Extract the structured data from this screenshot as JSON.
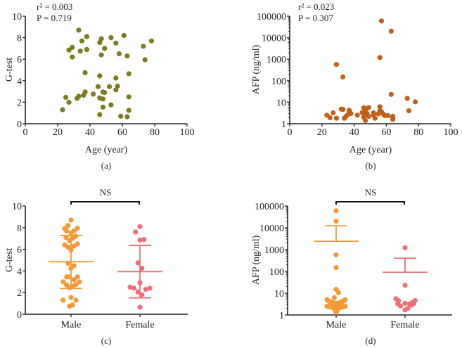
{
  "chart_data": [
    {
      "id": "a",
      "type": "scatter",
      "panel_label": "(a)",
      "xlabel": "Age (year)",
      "ylabel": "G-test",
      "xlim": [
        0,
        100
      ],
      "ylim": [
        0,
        10
      ],
      "yscale": "linear",
      "xticks": [
        "0",
        "20",
        "40",
        "60",
        "80",
        "100"
      ],
      "yticks": [
        "0",
        "2",
        "4",
        "6",
        "8",
        "10"
      ],
      "annotations": [
        "r² = 0.003",
        "P = 0.719"
      ],
      "color": "#7d7a22",
      "points": [
        [
          33,
          8.7
        ],
        [
          38,
          8.1
        ],
        [
          35,
          7.7
        ],
        [
          29,
          7.1
        ],
        [
          27,
          6.85
        ],
        [
          29,
          6.2
        ],
        [
          34,
          6.75
        ],
        [
          38,
          6.9
        ],
        [
          47,
          7.9
        ],
        [
          46,
          7.55
        ],
        [
          53,
          8.0
        ],
        [
          56,
          7.5
        ],
        [
          61,
          8.2
        ],
        [
          49,
          7.0
        ],
        [
          47,
          6.4
        ],
        [
          58,
          6.5
        ],
        [
          63,
          6.3
        ],
        [
          73,
          7.2
        ],
        [
          78,
          7.7
        ],
        [
          74,
          5.95
        ],
        [
          37,
          4.75
        ],
        [
          46,
          4.45
        ],
        [
          64,
          4.65
        ],
        [
          56,
          4.25
        ],
        [
          45,
          3.45
        ],
        [
          52,
          3.45
        ],
        [
          57,
          3.5
        ],
        [
          56,
          3.15
        ],
        [
          25,
          2.45
        ],
        [
          27,
          2.0
        ],
        [
          23,
          1.3
        ],
        [
          32,
          2.35
        ],
        [
          33,
          2.55
        ],
        [
          36,
          2.65
        ],
        [
          37,
          2.95
        ],
        [
          42,
          2.75
        ],
        [
          48,
          2.95
        ],
        [
          49,
          2.9
        ],
        [
          46,
          2.4
        ],
        [
          48,
          2.3
        ],
        [
          53,
          1.75
        ],
        [
          48,
          1.55
        ],
        [
          46,
          0.85
        ],
        [
          64,
          2.5
        ],
        [
          64,
          1.25
        ],
        [
          59,
          0.7
        ],
        [
          63,
          0.65
        ]
      ]
    },
    {
      "id": "b",
      "type": "scatter",
      "panel_label": "(b)",
      "xlabel": "Age (year)",
      "ylabel": "AFP (ng/ml)",
      "xlim": [
        0,
        100
      ],
      "ylim": [
        1,
        100000
      ],
      "yscale": "log",
      "xticks": [
        "0",
        "20",
        "40",
        "60",
        "80",
        "100"
      ],
      "yticks": [
        "1",
        "10",
        "100",
        "1000",
        "10000",
        "100000"
      ],
      "annotations": [
        "r² = 0.023",
        "P = 0.307"
      ],
      "color": "#c0611b",
      "points": [
        [
          57,
          60000
        ],
        [
          63,
          20000
        ],
        [
          56,
          1200
        ],
        [
          29,
          570
        ],
        [
          33,
          150
        ],
        [
          63,
          23
        ],
        [
          73,
          15
        ],
        [
          78,
          10.5
        ],
        [
          74,
          4
        ],
        [
          23,
          2.5
        ],
        [
          25,
          1.9
        ],
        [
          27,
          3.2
        ],
        [
          29,
          1.8
        ],
        [
          32,
          4.8
        ],
        [
          33,
          4.6
        ],
        [
          34,
          1.8
        ],
        [
          35,
          2.2
        ],
        [
          36,
          2.6
        ],
        [
          37,
          3.5
        ],
        [
          37,
          4.2
        ],
        [
          38,
          3.0
        ],
        [
          42,
          2.5
        ],
        [
          45,
          3.3
        ],
        [
          46,
          5.5
        ],
        [
          46,
          2.9
        ],
        [
          46,
          2.0
        ],
        [
          47,
          1.4
        ],
        [
          47,
          4.5
        ],
        [
          47,
          3.6
        ],
        [
          48,
          2.6
        ],
        [
          48,
          3.0
        ],
        [
          49,
          5.6
        ],
        [
          49,
          2.2
        ],
        [
          52,
          3.2
        ],
        [
          52,
          2.5
        ],
        [
          53,
          1.8
        ],
        [
          55,
          2.9
        ],
        [
          56,
          6.2
        ],
        [
          56,
          4.2
        ],
        [
          57,
          3.6
        ],
        [
          58,
          2.9
        ],
        [
          59,
          2.4
        ],
        [
          61,
          2.4
        ],
        [
          64,
          2.2
        ],
        [
          64,
          1.8
        ],
        [
          64,
          1.6
        ]
      ]
    },
    {
      "id": "c",
      "type": "scatter",
      "subtype": "dot-plot",
      "panel_label": "(c)",
      "xlabel": "",
      "ylabel": "G-test",
      "ylim": [
        0,
        10
      ],
      "yscale": "linear",
      "yticks": [
        "0",
        "2",
        "4",
        "6",
        "8",
        "10"
      ],
      "categories": [
        "Male",
        "Female"
      ],
      "significance": "NS",
      "series": [
        {
          "name": "Male",
          "color": "#f29a38",
          "mean": 4.85,
          "error_upper": 7.27,
          "error_lower": 2.38,
          "points": [
            [
              0,
              8.7
            ],
            [
              -0.6,
              8.2
            ],
            [
              -1.3,
              7.9
            ],
            [
              1.3,
              7.95
            ],
            [
              -0.9,
              7.7
            ],
            [
              0,
              7.5
            ],
            [
              0.6,
              7.7
            ],
            [
              -1.0,
              7.1
            ],
            [
              0.9,
              7.2
            ],
            [
              -0.3,
              6.8
            ],
            [
              0.3,
              7.0
            ],
            [
              -1.3,
              6.4
            ],
            [
              1.3,
              6.5
            ],
            [
              -0.6,
              6.2
            ],
            [
              0.6,
              6.3
            ],
            [
              0,
              5.95
            ],
            [
              -0.6,
              4.7
            ],
            [
              0.6,
              4.5
            ],
            [
              0,
              4.25
            ],
            [
              -1.6,
              3.0
            ],
            [
              -0.9,
              3.45
            ],
            [
              -0.3,
              3.45
            ],
            [
              0.6,
              3.2
            ],
            [
              1.3,
              3.45
            ],
            [
              1.7,
              3.0
            ],
            [
              -0.9,
              2.7
            ],
            [
              -0.3,
              2.45
            ],
            [
              0.3,
              2.6
            ],
            [
              1.0,
              2.75
            ],
            [
              -1.6,
              1.3
            ],
            [
              0,
              1.55
            ],
            [
              1.0,
              1.3
            ],
            [
              -0.3,
              0.75
            ],
            [
              0.3,
              0.85
            ]
          ]
        },
        {
          "name": "Female",
          "color": "#ea7177",
          "mean": 3.94,
          "error_upper": 6.36,
          "error_lower": 1.51,
          "points": [
            [
              0,
              8.1
            ],
            [
              -0.9,
              7.6
            ],
            [
              0,
              6.85
            ],
            [
              0.8,
              6.9
            ],
            [
              -0.4,
              4.75
            ],
            [
              0.4,
              4.25
            ],
            [
              0,
              2.9
            ],
            [
              -2.0,
              2.5
            ],
            [
              -1.2,
              2.4
            ],
            [
              1.2,
              2.3
            ],
            [
              2.0,
              2.4
            ],
            [
              -0.4,
              2.05
            ],
            [
              0.4,
              1.8
            ],
            [
              0,
              0.65
            ]
          ]
        }
      ]
    },
    {
      "id": "d",
      "type": "scatter",
      "subtype": "dot-plot",
      "panel_label": "(d)",
      "xlabel": "",
      "ylabel": "AFP (ng/ml)",
      "ylim": [
        1,
        100000
      ],
      "yscale": "log",
      "yticks": [
        "1",
        "10",
        "100",
        "1000",
        "10000",
        "100000"
      ],
      "categories": [
        "Male",
        "Female"
      ],
      "significance": "NS",
      "series": [
        {
          "name": "Male",
          "color": "#f29a38",
          "mean": 2400,
          "error_upper": 12300,
          "points": [
            [
              0,
              60000
            ],
            [
              0,
              20000
            ],
            [
              0,
              570
            ],
            [
              0,
              150
            ],
            [
              0,
              15
            ],
            [
              0.5,
              10.5
            ],
            [
              -0.4,
              6.2
            ],
            [
              -2.0,
              5.0
            ],
            [
              -1.6,
              4.4
            ],
            [
              -1.2,
              4.0
            ],
            [
              -0.8,
              3.7
            ],
            [
              -0.4,
              3.5
            ],
            [
              0,
              3.3
            ],
            [
              0.4,
              3.5
            ],
            [
              0.8,
              3.7
            ],
            [
              1.2,
              4.0
            ],
            [
              1.6,
              4.4
            ],
            [
              2.0,
              5.0
            ],
            [
              -2.0,
              2.5
            ],
            [
              -1.6,
              2.4
            ],
            [
              -1.2,
              2.3
            ],
            [
              -0.8,
              2.2
            ],
            [
              -0.4,
              2.1
            ],
            [
              0,
              2.0
            ],
            [
              0.4,
              2.1
            ],
            [
              0.8,
              2.2
            ],
            [
              1.2,
              2.3
            ],
            [
              1.6,
              2.4
            ],
            [
              2.0,
              2.5
            ],
            [
              -0.2,
              1.6
            ],
            [
              0.2,
              1.6
            ],
            [
              0,
              1.3
            ],
            [
              -1.2,
              3.0
            ],
            [
              1.2,
              3.0
            ]
          ]
        },
        {
          "name": "Female",
          "color": "#ea7177",
          "mean": 91,
          "error_upper": 400,
          "points": [
            [
              0,
              1200
            ],
            [
              0,
              23
            ],
            [
              -2.0,
              5.5
            ],
            [
              -1.4,
              4.5
            ],
            [
              -1.6,
              3.3
            ],
            [
              -1.0,
              2.6
            ],
            [
              0,
              3.4
            ],
            [
              0,
              1.7
            ],
            [
              0.6,
              2.0
            ],
            [
              1.0,
              3.2
            ],
            [
              1.4,
              2.8
            ],
            [
              1.6,
              3.8
            ],
            [
              1.9,
              3.3
            ],
            [
              2.2,
              4.6
            ]
          ]
        }
      ]
    }
  ]
}
